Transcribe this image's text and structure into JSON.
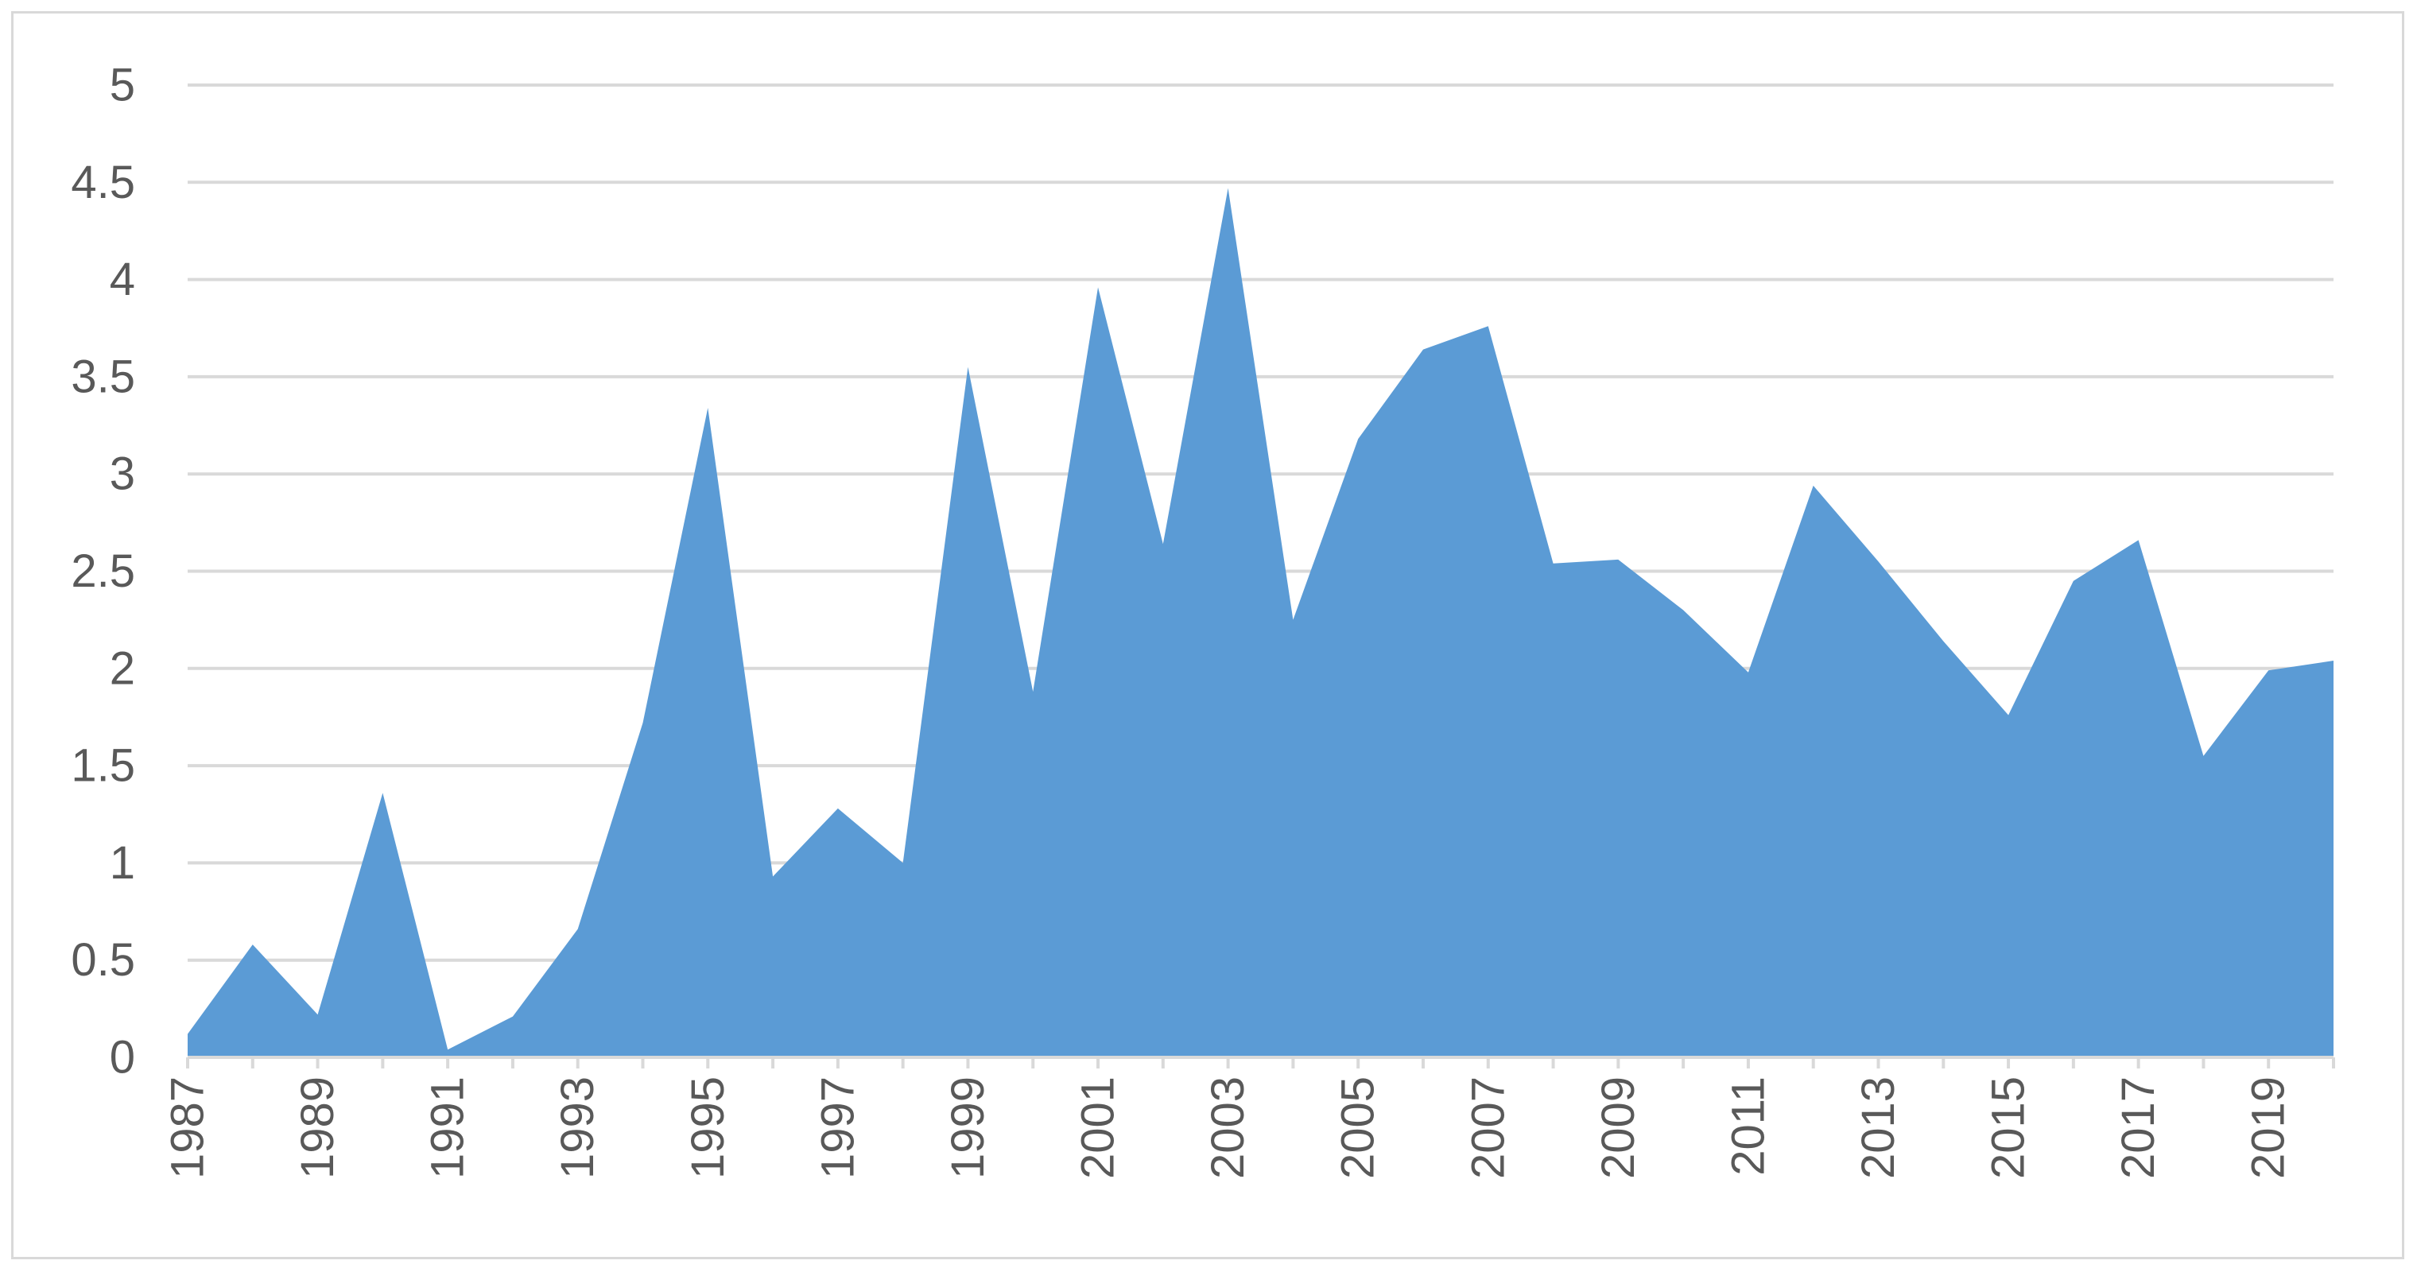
{
  "chart_data": {
    "type": "area",
    "title": "",
    "xlabel": "",
    "ylabel": "",
    "x": [
      1987,
      1988,
      1989,
      1990,
      1991,
      1992,
      1993,
      1994,
      1995,
      1996,
      1997,
      1998,
      1999,
      2000,
      2001,
      2002,
      2003,
      2004,
      2005,
      2006,
      2007,
      2008,
      2009,
      2010,
      2011,
      2012,
      2013,
      2014,
      2015,
      2016,
      2017,
      2018,
      2019,
      2020
    ],
    "values": [
      0.12,
      0.58,
      0.22,
      1.36,
      0.04,
      0.21,
      0.66,
      1.72,
      3.34,
      0.93,
      1.28,
      1.0,
      3.55,
      1.88,
      3.96,
      2.64,
      4.47,
      2.25,
      3.18,
      3.64,
      3.76,
      2.54,
      2.56,
      2.3,
      1.98,
      2.94,
      2.55,
      2.14,
      1.76,
      2.45,
      2.66,
      1.55,
      1.99,
      2.04
    ],
    "x_tick_labels": [
      "1987",
      "1989",
      "1991",
      "1993",
      "1995",
      "1997",
      "1999",
      "2001",
      "2003",
      "2005",
      "2007",
      "2009",
      "2011",
      "2013",
      "2015",
      "2017",
      "2019"
    ],
    "y_tick_labels": [
      "0",
      "0.5",
      "1",
      "1.5",
      "2",
      "2.5",
      "3",
      "3.5",
      "4",
      "4.5",
      "5"
    ],
    "ylim": [
      0,
      5
    ],
    "grid": true,
    "legend": "none",
    "colors": {
      "area": "#5b9bd5",
      "grid": "#d9d9d9",
      "text": "#595959",
      "border": "#d9d9d9"
    }
  }
}
